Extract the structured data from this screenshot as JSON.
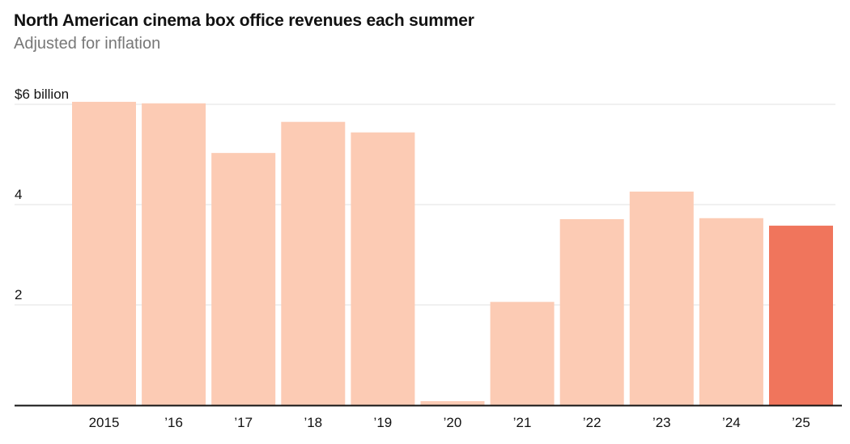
{
  "title": "North American cinema box office revenues each summer",
  "subtitle": "Adjusted for inflation",
  "chart_data": {
    "type": "bar",
    "title": "North American cinema box office revenues each summer",
    "subtitle": "Adjusted for inflation",
    "xlabel": "",
    "ylabel": "",
    "categories": [
      "2015",
      "’16",
      "’17",
      "’18",
      "’19",
      "’20",
      "’21",
      "’22",
      "’23",
      "’24",
      "’25"
    ],
    "values": [
      6.05,
      6.02,
      5.03,
      5.65,
      5.44,
      0.08,
      2.06,
      3.71,
      4.26,
      3.73,
      3.58
    ],
    "ylim": [
      0,
      6
    ],
    "yticks": [
      {
        "value": 2,
        "label": "2"
      },
      {
        "value": 4,
        "label": "4"
      },
      {
        "value": 6,
        "label": "$6 billion"
      }
    ],
    "grid": true,
    "colors": {
      "default": "#fccbb4",
      "highlight": "#f0755c",
      "highlight_category": "’25",
      "gridline": "#e2e2e2",
      "axis": "#121212"
    }
  }
}
